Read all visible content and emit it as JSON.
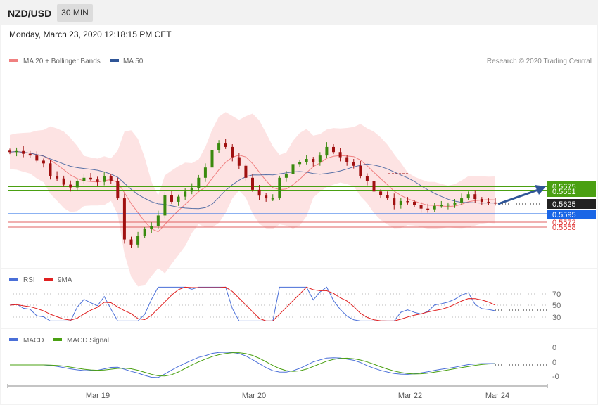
{
  "header": {
    "symbol": "NZD/USD",
    "interval": "30 MIN",
    "datetime": "Monday, March 23, 2020 12:18:15 PM CET"
  },
  "price_panel": {
    "legend": [
      {
        "label": "MA 20 + Bollinger Bands",
        "color": "#f08080"
      },
      {
        "label": "MA 50",
        "color": "#2f5597"
      }
    ],
    "credit": "Research © 2020 Trading Central",
    "level_labels": [
      {
        "text": "0.5675",
        "bg": "#4aa012",
        "fg": "#ffffff"
      },
      {
        "text": "0.5661",
        "bg": "#4aa012",
        "fg": "#ffffff"
      },
      {
        "text": "0.5625",
        "bg": "#222222",
        "fg": "#ffffff"
      },
      {
        "text": "0.5595",
        "bg": "#1a66e6",
        "fg": "#ffffff"
      },
      {
        "text": "0.5572",
        "bg": "none",
        "fg": "#e03030"
      },
      {
        "text": "0.5558",
        "bg": "none",
        "fg": "#e03030"
      }
    ]
  },
  "rsi_panel": {
    "legend": [
      {
        "label": "RSI",
        "color": "#4a6fd8"
      },
      {
        "label": "9MA",
        "color": "#e02020"
      }
    ],
    "levels": [
      "70",
      "50",
      "30"
    ]
  },
  "macd_panel": {
    "legend": [
      {
        "label": "MACD",
        "color": "#4a6fd8"
      },
      {
        "label": "MACD Signal",
        "color": "#4aa012"
      }
    ],
    "levels": [
      "0",
      "0",
      "-0"
    ]
  },
  "x_axis": {
    "labels": [
      "Mar 19",
      "Mar 20",
      "Mar 22",
      "Mar 24"
    ]
  },
  "colors": {
    "up": "#3a8a0e",
    "down": "#a01010",
    "bollinger_fill": "#fde3e3",
    "ma20": "#f08080",
    "ma50": "#2f5597",
    "resistance": "#4aa012",
    "support_main": "#1a66e6",
    "support_minor": "#e06060",
    "arrow": "#2f5597"
  },
  "chart_data": {
    "type": "candlestick",
    "title": "NZD/USD",
    "interval": "30 MIN",
    "x_labels": [
      "Mar 19",
      "Mar 20",
      "Mar 22",
      "Mar 24"
    ],
    "y_levels": {
      "resistance": [
        0.5675,
        0.5661
      ],
      "last": 0.5625,
      "pivot": 0.5595,
      "supports": [
        0.5572,
        0.5558
      ]
    },
    "candles_approx_close": [
      0.5775,
      0.5778,
      0.577,
      0.5765,
      0.575,
      0.5742,
      0.5705,
      0.5698,
      0.568,
      0.5672,
      0.569,
      0.57,
      0.5695,
      0.5688,
      0.5705,
      0.569,
      0.564,
      0.552,
      0.5505,
      0.553,
      0.555,
      0.556,
      0.559,
      0.565,
      0.563,
      0.5645,
      0.566,
      0.567,
      0.57,
      0.573,
      0.578,
      0.58,
      0.579,
      0.576,
      0.5735,
      0.57,
      0.5665,
      0.5648,
      0.564,
      0.564,
      0.57,
      0.571,
      0.574,
      0.5745,
      0.5755,
      0.5745,
      0.5765,
      0.579,
      0.5775,
      0.576,
      0.5745,
      0.5735,
      0.5705,
      0.569,
      0.566,
      0.565,
      0.564,
      0.562,
      0.5632,
      0.563,
      0.562,
      0.561,
      0.5608,
      0.5618,
      0.562,
      0.5622,
      0.5628,
      0.564,
      0.5652,
      0.5638,
      0.563,
      0.5628,
      0.5625
    ],
    "rsi_levels": [
      70,
      50,
      30
    ],
    "macd_levels": [
      "0",
      "0",
      "-0"
    ]
  }
}
